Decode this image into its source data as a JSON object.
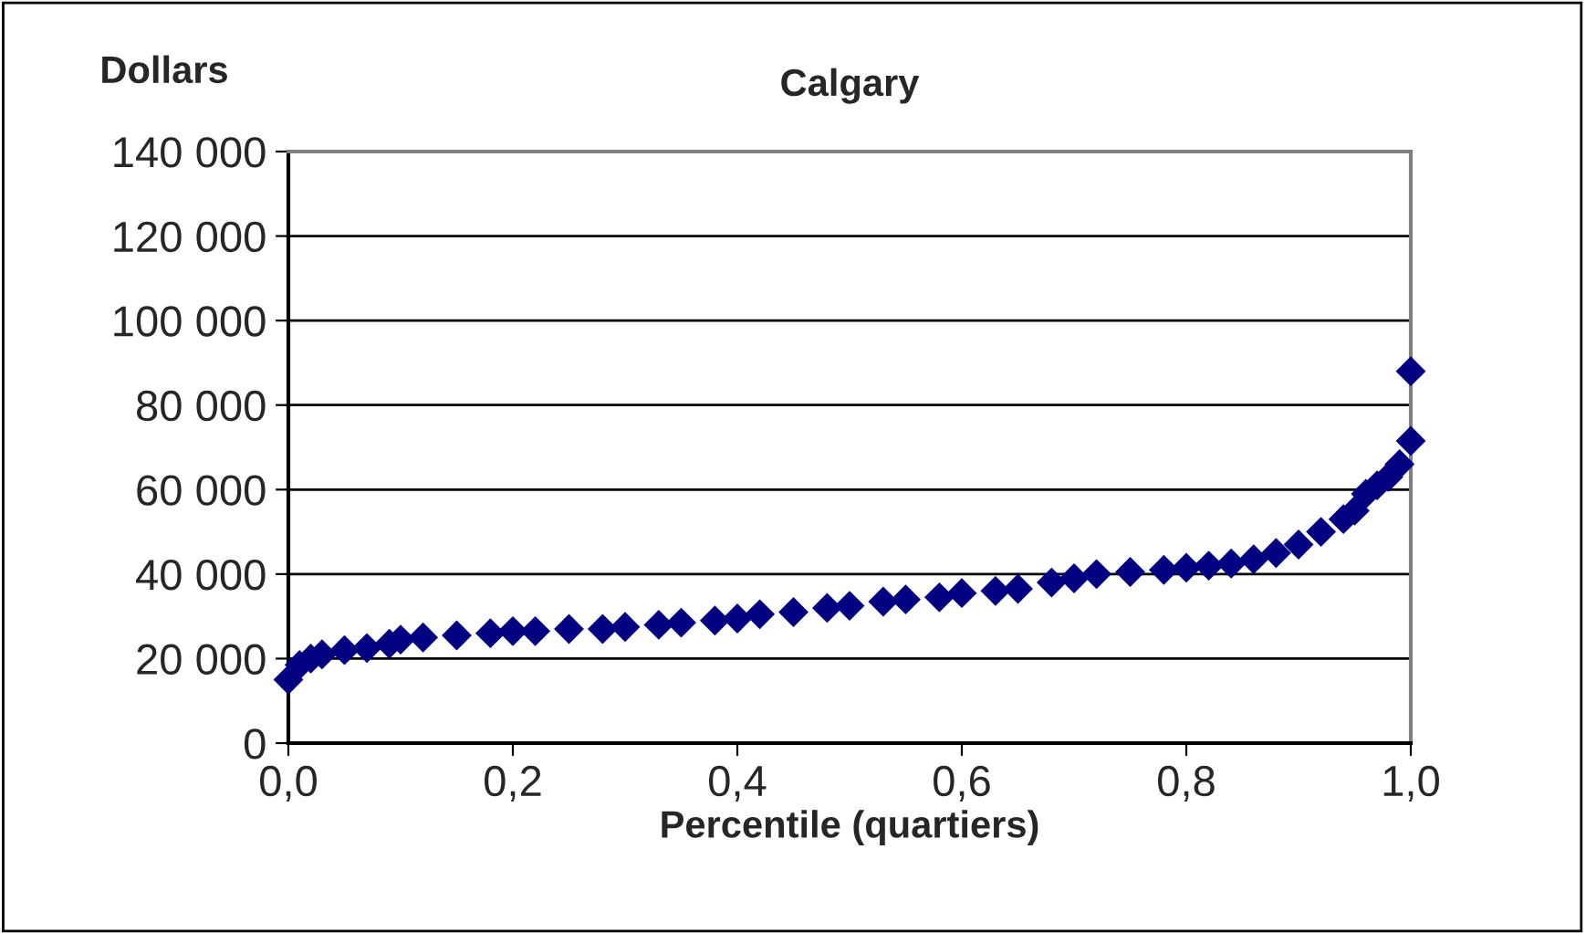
{
  "chart_data": {
    "type": "scatter",
    "title": "Calgary",
    "ylabel": "Dollars",
    "xlabel": "Percentile (quartiers)",
    "x": [
      0,
      0.01,
      0.02,
      0.03,
      0.05,
      0.07,
      0.09,
      0.1,
      0.12,
      0.15,
      0.18,
      0.2,
      0.22,
      0.25,
      0.28,
      0.3,
      0.33,
      0.35,
      0.38,
      0.4,
      0.42,
      0.45,
      0.48,
      0.5,
      0.53,
      0.55,
      0.58,
      0.6,
      0.63,
      0.65,
      0.68,
      0.7,
      0.72,
      0.75,
      0.78,
      0.8,
      0.82,
      0.84,
      0.86,
      0.88,
      0.9,
      0.92,
      0.94,
      0.95,
      0.96,
      0.97,
      0.98,
      0.99,
      1.0,
      1.0
    ],
    "series": [
      {
        "color": "#000080",
        "values": [
          15000,
          18500,
          20000,
          21000,
          22000,
          22500,
          23500,
          24500,
          25000,
          25500,
          26000,
          26500,
          26500,
          27000,
          27000,
          27500,
          28000,
          28500,
          29000,
          29500,
          30500,
          31000,
          32000,
          32500,
          33500,
          34000,
          34500,
          35500,
          36000,
          36500,
          38000,
          39000,
          40000,
          40500,
          41000,
          41500,
          42000,
          42500,
          43500,
          45000,
          47000,
          50000,
          53000,
          55000,
          59000,
          61000,
          63000,
          66000,
          71500,
          88000
        ]
      }
    ],
    "xlim": [
      0,
      1
    ],
    "xticks": [
      {
        "value": 0,
        "label": "0,0"
      },
      {
        "value": 0.2,
        "label": "0,2"
      },
      {
        "value": 0.4,
        "label": "0,4"
      },
      {
        "value": 0.6,
        "label": "0,6"
      },
      {
        "value": 0.8,
        "label": "0,8"
      },
      {
        "value": 1,
        "label": "1,0"
      }
    ],
    "ylim": [
      0,
      140000
    ],
    "yticks": [
      {
        "value": 0,
        "label": "0"
      },
      {
        "value": 20000,
        "label": "20 000"
      },
      {
        "value": 40000,
        "label": "40 000"
      },
      {
        "value": 60000,
        "label": "60 000"
      },
      {
        "value": 80000,
        "label": "80 000"
      },
      {
        "value": 100000,
        "label": "100 000"
      },
      {
        "value": 120000,
        "label": "120 000"
      },
      {
        "value": 140000,
        "label": "140 000"
      }
    ],
    "grid": "y",
    "marker": "diamond",
    "legend": false
  }
}
